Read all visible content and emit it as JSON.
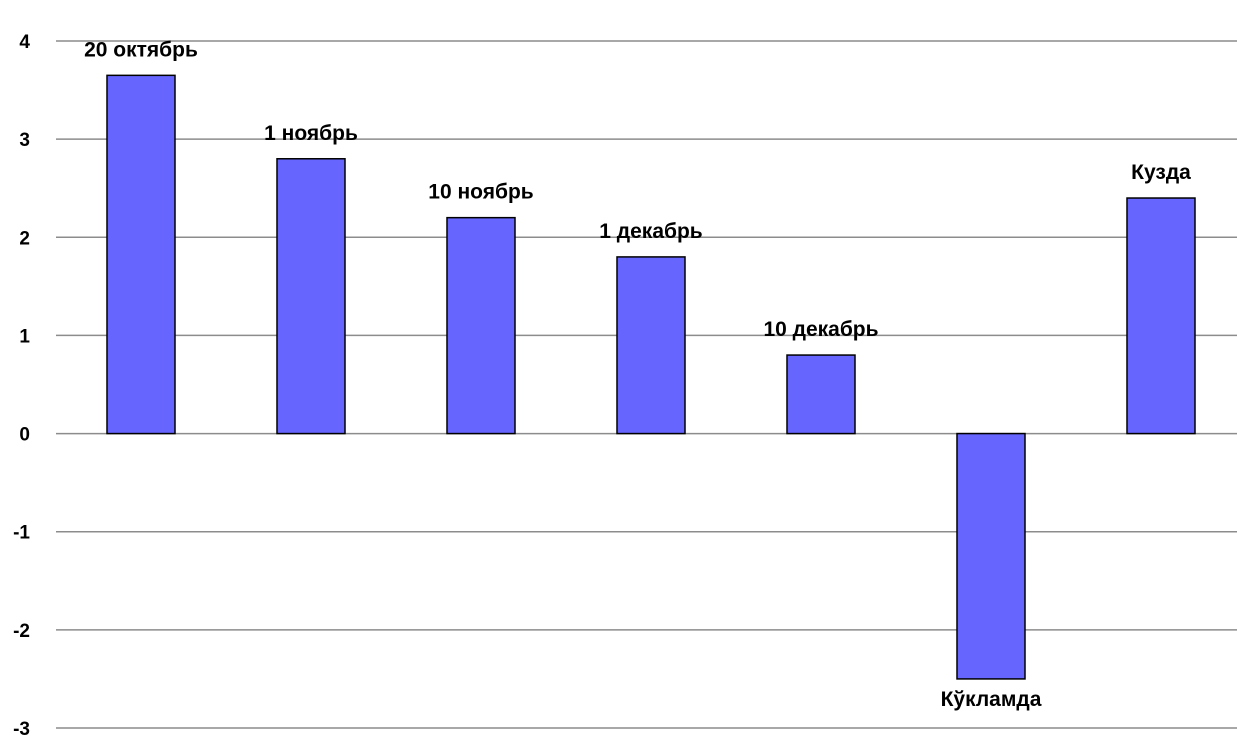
{
  "chart_data": {
    "type": "bar",
    "categories": [
      "20 октябрь",
      "1 ноябрь",
      "10 ноябрь",
      "1 декабрь",
      "10 декабрь",
      "Кўкламда",
      "Кузда"
    ],
    "values": [
      3.65,
      2.8,
      2.2,
      1.8,
      0.8,
      -2.5,
      2.4
    ],
    "data_labels": [
      "20 октябрь",
      "1 ноябрь",
      "10 ноябрь",
      "1 декабрь",
      "10 декабрь",
      "Кўкламда",
      "Кузда"
    ],
    "ylim": [
      -3,
      4
    ],
    "yticks": [
      4,
      3,
      2,
      1,
      0,
      -1,
      -2,
      -3
    ],
    "ytick_labels": [
      "4",
      "3",
      "2",
      "1",
      "0",
      "-1",
      "-2",
      "-3"
    ],
    "grid": true,
    "legend": "none",
    "colors": {
      "bar_fill": "#6666ff",
      "bar_stroke": "#000000",
      "grid": "#8c8c8c",
      "text": "#000000"
    }
  }
}
